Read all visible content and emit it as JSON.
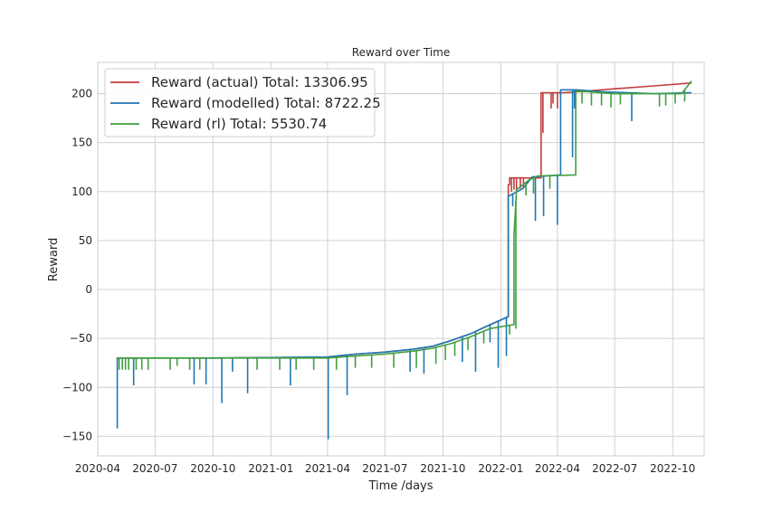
{
  "chart_data": {
    "type": "line",
    "title": "Reward over Time",
    "xlabel": "Time /days",
    "ylabel": "Reward",
    "xlim": [
      "2020-04-01",
      "2022-11-20"
    ],
    "ylim": [
      -170,
      232
    ],
    "x_ticks": [
      "2020-04",
      "2020-07",
      "2020-10",
      "2021-01",
      "2021-04",
      "2021-07",
      "2021-10",
      "2022-01",
      "2022-04",
      "2022-07",
      "2022-10"
    ],
    "y_ticks": [
      200,
      150,
      100,
      50,
      0,
      -50,
      -100,
      -150
    ],
    "grid": true,
    "legend_position": "top-left",
    "series": [
      {
        "name": "Reward (actual) Total: 13306.95",
        "color": "#c03d3e",
        "points": [
          [
            "2020-05-01",
            -70
          ],
          [
            "2020-07-01",
            -70
          ],
          [
            "2020-10-01",
            -70
          ],
          [
            "2021-01-01",
            -69.5
          ],
          [
            "2021-04-01",
            -69
          ],
          [
            "2021-05-15",
            -66
          ],
          [
            "2021-07-01",
            -64
          ],
          [
            "2021-08-15",
            -61
          ],
          [
            "2021-09-15",
            -58
          ],
          [
            "2021-10-15",
            -52
          ],
          [
            "2021-11-15",
            -45
          ],
          [
            "2021-12-15",
            -36
          ],
          [
            "2022-01-05",
            -30
          ],
          [
            "2022-01-12",
            -28
          ],
          [
            "2022-01-13",
            107
          ],
          [
            "2022-01-15",
            114
          ],
          [
            "2022-03-05",
            114
          ],
          [
            "2022-03-06",
            201
          ],
          [
            "2022-04-10",
            201
          ],
          [
            "2022-05-01",
            202
          ],
          [
            "2022-07-01",
            205
          ],
          [
            "2022-09-01",
            208
          ],
          [
            "2022-10-31",
            211
          ]
        ],
        "spikes": [
          [
            "2022-01-18",
            100
          ],
          [
            "2022-01-22",
            102
          ],
          [
            "2022-01-26",
            101
          ],
          [
            "2022-02-01",
            103
          ],
          [
            "2022-02-06",
            104
          ],
          [
            "2022-03-09",
            160
          ],
          [
            "2022-03-22",
            185
          ],
          [
            "2022-03-25",
            190
          ],
          [
            "2022-04-01",
            185
          ]
        ]
      },
      {
        "name": "Reward (modelled) Total: 8722.25",
        "color": "#1f77b4",
        "points": [
          [
            "2020-05-01",
            -70
          ],
          [
            "2020-07-01",
            -70
          ],
          [
            "2020-10-01",
            -70
          ],
          [
            "2021-01-01",
            -69.5
          ],
          [
            "2021-04-01",
            -69
          ],
          [
            "2021-05-15",
            -66
          ],
          [
            "2021-07-01",
            -64
          ],
          [
            "2021-08-15",
            -61
          ],
          [
            "2021-09-15",
            -58
          ],
          [
            "2021-10-15",
            -52
          ],
          [
            "2021-11-15",
            -45
          ],
          [
            "2021-12-15",
            -36
          ],
          [
            "2022-01-05",
            -30
          ],
          [
            "2022-01-12",
            -28
          ],
          [
            "2022-01-13",
            95
          ],
          [
            "2022-01-18",
            97
          ],
          [
            "2022-02-05",
            103
          ],
          [
            "2022-02-20",
            115
          ],
          [
            "2022-04-05",
            117
          ],
          [
            "2022-04-06",
            204
          ],
          [
            "2022-05-01",
            204
          ],
          [
            "2022-06-15",
            202
          ],
          [
            "2022-09-01",
            200
          ],
          [
            "2022-10-31",
            201
          ]
        ],
        "spikes": [
          [
            "2020-05-02",
            -142
          ],
          [
            "2020-05-28",
            -98
          ],
          [
            "2020-09-01",
            -97
          ],
          [
            "2020-09-20",
            -97
          ],
          [
            "2020-10-15",
            -116
          ],
          [
            "2020-11-01",
            -84
          ],
          [
            "2020-11-25",
            -106
          ],
          [
            "2021-02-01",
            -98
          ],
          [
            "2021-04-02",
            -153
          ],
          [
            "2021-05-02",
            -108
          ],
          [
            "2021-08-10",
            -84
          ],
          [
            "2021-09-01",
            -86
          ],
          [
            "2021-11-01",
            -74
          ],
          [
            "2021-11-22",
            -84
          ],
          [
            "2021-12-15",
            -54
          ],
          [
            "2021-12-28",
            -80
          ],
          [
            "2022-01-10",
            -68
          ],
          [
            "2022-01-20",
            85
          ],
          [
            "2022-02-25",
            70
          ],
          [
            "2022-03-10",
            75
          ],
          [
            "2022-04-01",
            66
          ],
          [
            "2022-04-25",
            135
          ],
          [
            "2022-04-28",
            185
          ],
          [
            "2022-07-28",
            172
          ]
        ]
      },
      {
        "name": "Reward (rl) Total: 5530.74",
        "color": "#3f9f3f",
        "points": [
          [
            "2020-05-01",
            -70
          ],
          [
            "2020-07-01",
            -70
          ],
          [
            "2020-10-01",
            -70
          ],
          [
            "2021-01-01",
            -70
          ],
          [
            "2021-04-01",
            -70
          ],
          [
            "2021-05-15",
            -68
          ],
          [
            "2021-07-01",
            -66
          ],
          [
            "2021-08-15",
            -63
          ],
          [
            "2021-09-15",
            -60
          ],
          [
            "2021-10-15",
            -55
          ],
          [
            "2021-11-15",
            -48
          ],
          [
            "2021-12-15",
            -40
          ],
          [
            "2022-01-20",
            -36
          ],
          [
            "2022-01-22",
            55
          ],
          [
            "2022-01-26",
            102
          ],
          [
            "2022-02-15",
            112
          ],
          [
            "2022-03-01",
            116
          ],
          [
            "2022-04-29",
            117
          ],
          [
            "2022-04-30",
            203
          ],
          [
            "2022-07-01",
            200
          ],
          [
            "2022-10-15",
            200
          ],
          [
            "2022-10-31",
            213
          ]
        ],
        "spikes": [
          [
            "2020-05-05",
            -82
          ],
          [
            "2020-05-10",
            -82
          ],
          [
            "2020-05-15",
            -82
          ],
          [
            "2020-05-20",
            -82
          ],
          [
            "2020-06-01",
            -82
          ],
          [
            "2020-06-10",
            -82
          ],
          [
            "2020-06-20",
            -82
          ],
          [
            "2020-07-25",
            -82
          ],
          [
            "2020-08-05",
            -78
          ],
          [
            "2020-08-25",
            -82
          ],
          [
            "2020-09-10",
            -82
          ],
          [
            "2020-12-10",
            -82
          ],
          [
            "2021-01-15",
            -82
          ],
          [
            "2021-02-10",
            -82
          ],
          [
            "2021-03-10",
            -82
          ],
          [
            "2021-04-15",
            -82
          ],
          [
            "2021-05-15",
            -80
          ],
          [
            "2021-06-10",
            -80
          ],
          [
            "2021-07-15",
            -80
          ],
          [
            "2021-08-20",
            -80
          ],
          [
            "2021-09-20",
            -76
          ],
          [
            "2021-10-05",
            -72
          ],
          [
            "2021-10-20",
            -68
          ],
          [
            "2021-11-10",
            -62
          ],
          [
            "2021-12-05",
            -55
          ],
          [
            "2022-01-15",
            -46
          ],
          [
            "2022-01-25",
            -40
          ],
          [
            "2022-02-10",
            96
          ],
          [
            "2022-02-22",
            98
          ],
          [
            "2022-03-20",
            103
          ],
          [
            "2022-05-10",
            190
          ],
          [
            "2022-05-25",
            188
          ],
          [
            "2022-06-10",
            188
          ],
          [
            "2022-06-25",
            186
          ],
          [
            "2022-07-10",
            189
          ],
          [
            "2022-09-10",
            187
          ],
          [
            "2022-09-20",
            188
          ],
          [
            "2022-10-05",
            190
          ],
          [
            "2022-10-20",
            192
          ]
        ]
      }
    ]
  }
}
